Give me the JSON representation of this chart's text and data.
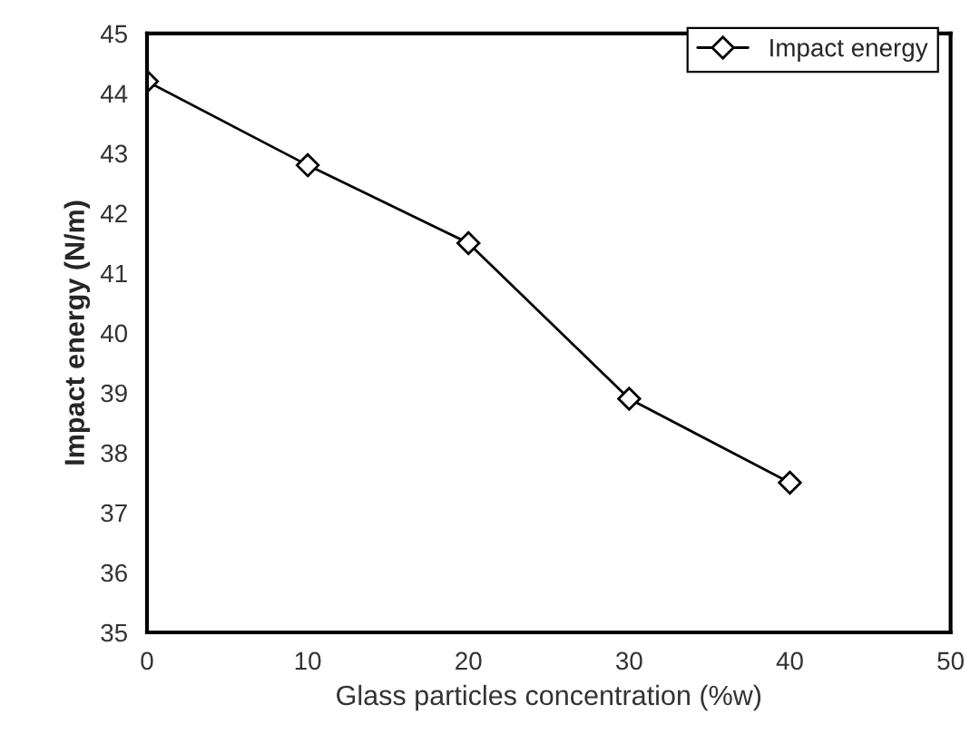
{
  "chart_data": {
    "type": "line",
    "xlabel": "Glass particles concentration (%w)",
    "ylabel": "Impact energy (N/m)",
    "x": [
      0,
      10,
      20,
      30,
      40
    ],
    "series": [
      {
        "name": "Impact energy",
        "color": "#000000",
        "values": [
          44.2,
          42.8,
          41.5,
          38.9,
          37.5
        ]
      }
    ],
    "xlim": [
      0,
      50
    ],
    "xticks": [
      0,
      10,
      20,
      30,
      40,
      50
    ],
    "ylim": [
      35,
      45
    ],
    "yticks": [
      35,
      36,
      37,
      38,
      39,
      40,
      41,
      42,
      43,
      44,
      45
    ],
    "grid": false,
    "legend": "top right",
    "marker": "diamond",
    "line_style": "solid"
  }
}
